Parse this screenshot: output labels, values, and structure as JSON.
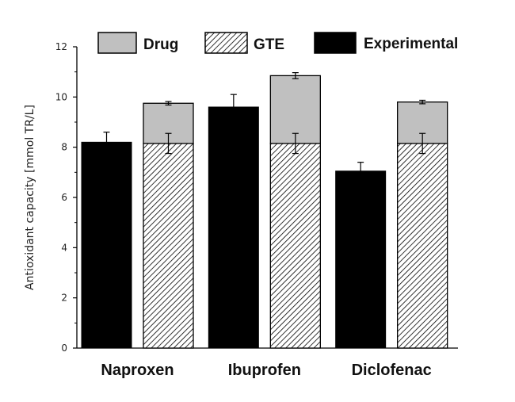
{
  "chart_data": {
    "type": "bar",
    "stacked_groups": true,
    "categories": [
      "Naproxen",
      "Ibuprofen",
      "Diclofenac"
    ],
    "ylabel": "Antioxidant capacity [mmol TR/L]",
    "ylim": [
      0,
      12
    ],
    "yticks": [
      "0",
      "2",
      "4",
      "6",
      "8",
      "10",
      "12"
    ],
    "legend": {
      "position": "top",
      "entries": [
        {
          "name": "Drug",
          "pattern": "solid",
          "color": "#c0c0c0"
        },
        {
          "name": "GTE",
          "pattern": "hatched",
          "color": "#000000"
        },
        {
          "name": "Experimental",
          "pattern": "solid",
          "color": "#000000"
        }
      ]
    },
    "series": [
      {
        "name": "Experimental",
        "values": [
          8.2,
          9.6,
          7.05
        ],
        "errors": [
          0.4,
          0.5,
          0.35
        ]
      },
      {
        "name": "GTE",
        "values": [
          8.15,
          8.15,
          8.15
        ],
        "errors": [
          0.4,
          0.4,
          0.4
        ]
      },
      {
        "name": "Drug",
        "values": [
          1.6,
          2.7,
          1.65
        ],
        "errors": [
          0.07,
          0.12,
          0.07
        ]
      }
    ],
    "colors": {
      "experimental": "#000000",
      "drug": "#c0c0c0",
      "gte_hatch": "#000000",
      "gte_bg": "#ffffff"
    },
    "grid": false
  }
}
